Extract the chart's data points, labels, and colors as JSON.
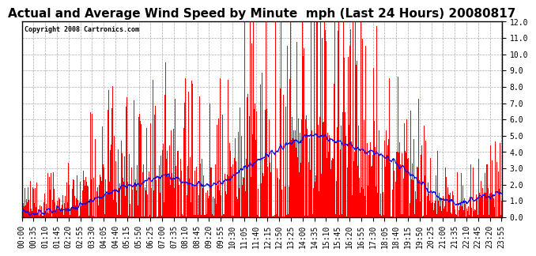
{
  "title": "Actual and Average Wind Speed by Minute  mph (Last 24 Hours) 20080817",
  "copyright": "Copyright 2008 Cartronics.com",
  "ylim": [
    0,
    12.0
  ],
  "yticks": [
    0.0,
    1.0,
    2.0,
    3.0,
    4.0,
    5.0,
    6.0,
    7.0,
    8.0,
    9.0,
    10.0,
    11.0,
    12.0
  ],
  "bar_color": "#FF0000",
  "line_color": "#0000FF",
  "bg_color": "#FFFFFF",
  "grid_color": "#AAAAAA",
  "title_fontsize": 11,
  "tick_fontsize": 7,
  "n_minutes": 1440,
  "xtick_labels": [
    "00:00",
    "00:35",
    "01:10",
    "01:45",
    "02:20",
    "02:55",
    "03:30",
    "04:05",
    "04:40",
    "05:15",
    "05:50",
    "06:25",
    "07:00",
    "07:35",
    "08:10",
    "08:45",
    "09:20",
    "09:55",
    "10:30",
    "11:05",
    "11:40",
    "12:15",
    "12:50",
    "13:25",
    "14:00",
    "14:35",
    "15:10",
    "15:45",
    "16:20",
    "16:55",
    "17:30",
    "18:05",
    "18:40",
    "19:15",
    "19:50",
    "20:25",
    "21:00",
    "21:35",
    "22:10",
    "22:45",
    "23:20",
    "23:55"
  ],
  "seed": 12345,
  "avg_values": [
    0.3,
    0.3,
    0.3,
    0.3,
    0.3,
    0.4,
    0.4,
    0.4,
    0.5,
    0.5,
    0.6,
    0.7,
    0.8,
    1.0,
    1.2,
    1.4,
    1.5,
    1.6,
    1.7,
    1.8,
    1.9,
    2.0,
    2.1,
    2.2,
    2.3,
    2.4,
    2.5,
    2.5,
    2.4,
    2.3,
    2.2,
    2.1,
    2.0,
    2.0,
    1.9,
    1.9,
    2.0,
    2.1,
    2.3,
    2.5,
    2.7,
    2.9,
    3.1,
    3.3,
    3.5,
    3.7,
    3.9,
    4.1,
    4.3,
    4.5,
    4.6,
    4.7,
    4.8,
    4.9,
    5.0,
    5.0,
    4.9,
    4.8,
    4.7,
    4.6,
    4.5,
    4.4,
    4.3,
    4.2,
    4.1,
    4.0,
    3.9,
    3.8,
    3.6,
    3.4,
    3.2,
    3.0,
    2.7,
    2.4,
    2.1,
    1.8,
    1.5,
    1.3,
    1.1,
    1.0,
    0.9,
    0.9,
    0.9,
    1.0,
    1.1,
    1.2,
    1.3,
    1.4,
    1.4,
    1.5
  ],
  "bar_envelope": [
    0.6,
    0.6,
    0.7,
    0.7,
    0.8,
    0.8,
    0.9,
    1.0,
    1.1,
    1.2,
    1.3,
    1.5,
    1.7,
    2.0,
    2.3,
    2.5,
    2.5,
    2.5,
    2.3,
    2.2,
    2.1,
    2.1,
    2.2,
    2.3,
    2.5,
    2.8,
    3.0,
    3.0,
    2.9,
    2.8,
    2.7,
    2.6,
    2.5,
    2.5,
    2.4,
    2.4,
    2.5,
    2.7,
    3.0,
    3.3,
    3.7,
    4.0,
    4.3,
    4.6,
    4.9,
    5.1,
    5.3,
    5.4,
    5.5,
    5.5,
    5.4,
    5.3,
    5.2,
    5.1,
    5.0,
    4.9,
    4.8,
    4.7,
    4.6,
    4.5,
    4.4,
    4.3,
    4.2,
    4.1,
    4.0,
    3.9,
    3.8,
    3.7,
    3.5,
    3.3,
    3.1,
    2.9,
    2.6,
    2.3,
    2.0,
    1.7,
    1.4,
    1.2,
    1.0,
    0.9,
    0.9,
    0.9,
    0.9,
    1.0,
    1.1,
    1.2,
    1.3,
    1.4,
    1.5,
    1.6
  ]
}
